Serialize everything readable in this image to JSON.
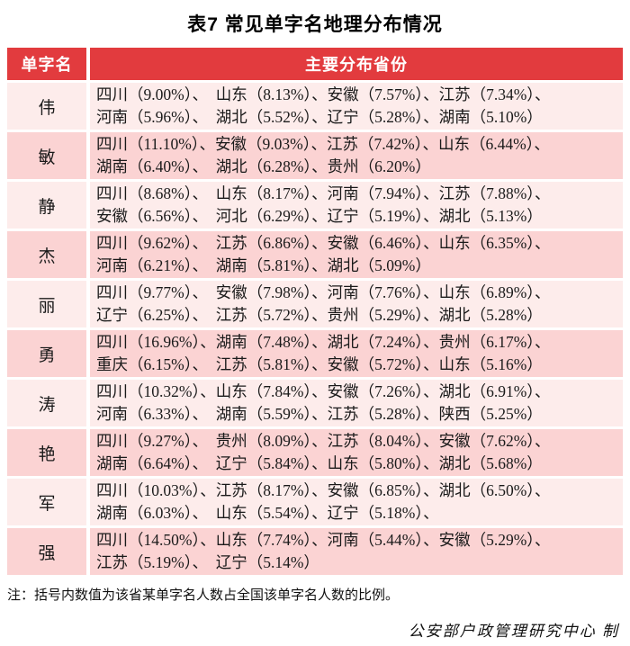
{
  "title": "表7 常见单字名地理分布情况",
  "table": {
    "header": {
      "name_col": "单字名",
      "provinces_col": "主要分布省份"
    },
    "rows": [
      {
        "name": "伟",
        "line1": "四川（9.00%）、　山东（8.13%）、安徽（7.57%）、江苏（7.34%）、",
        "line2": "河南（5.96%）、　湖北（5.52%）、辽宁（5.28%）、湖南（5.10%）"
      },
      {
        "name": "敏",
        "line1": "四川（11.10%）、安徽（9.03%）、江苏（7.42%）、山东（6.44%）、",
        "line2": "湖南（6.40%）、　湖北（6.28%）、贵州（6.20%）"
      },
      {
        "name": "静",
        "line1": "四川（8.68%）、　山东（8.17%）、河南（7.94%）、江苏（7.88%）、",
        "line2": "安徽（6.56%）、　河北（6.29%）、辽宁（5.19%）、湖北（5.13%）"
      },
      {
        "name": "杰",
        "line1": "四川（9.62%）、　江苏（6.86%）、安徽（6.46%）、山东（6.35%）、",
        "line2": "河南（6.21%）、　湖南（5.81%）、湖北（5.09%）"
      },
      {
        "name": "丽",
        "line1": "四川（9.77%）、　安徽（7.98%）、河南（7.76%）、山东（6.89%）、",
        "line2": "辽宁（6.25%）、　江苏（5.72%）、贵州（5.29%）、湖北（5.28%）"
      },
      {
        "name": "勇",
        "line1": "四川（16.96%）、湖南（7.48%）、湖北（7.24%）、贵州（6.17%）、",
        "line2": "重庆（6.15%）、　江苏（5.81%）、安徽（5.72%）、山东（5.16%）"
      },
      {
        "name": "涛",
        "line1": "四川（10.32%）、山东（7.84%）、安徽（7.26%）、湖北（6.91%）、",
        "line2": "河南（6.33%）、　湖南（5.59%）、江苏（5.28%）、陕西（5.25%）"
      },
      {
        "name": "艳",
        "line1": "四川（9.27%）、　贵州（8.09%）、江苏（8.04%）、安徽（7.62%）、",
        "line2": "湖南（6.64%）、　辽宁（5.84%）、山东（5.80%）、湖北（5.68%）"
      },
      {
        "name": "军",
        "line1": "四川（10.03%）、江苏（8.17%）、安徽（6.85%）、湖北（6.50%）、",
        "line2": "湖南（6.03%）、　山东（5.54%）、辽宁（5.18%）、"
      },
      {
        "name": "强",
        "line1": "四川（14.50%）、山东（7.74%）、河南（5.44%）、安徽（5.29%）、",
        "line2": "江苏（5.19%）、　辽宁（5.14%）"
      }
    ]
  },
  "note": "注：括号内数值为该省某单字名人数占全国该单字名人数的比例。",
  "credit": "公安部户政管理研究中心 制",
  "colors": {
    "header_bg": "#e23b3e",
    "header_text": "#ffffff",
    "row_light": "#fdeceb",
    "row_dark": "#fbd3d3",
    "page_bg": "#ffffff",
    "text": "#1a1a1a"
  },
  "chart_data": {
    "type": "table",
    "title": "表7 常见单字名地理分布情况",
    "columns": [
      "单字名",
      "主要分布省份"
    ],
    "rows": [
      {
        "name": "伟",
        "provinces": [
          {
            "province": "四川",
            "pct": 9.0
          },
          {
            "province": "山东",
            "pct": 8.13
          },
          {
            "province": "安徽",
            "pct": 7.57
          },
          {
            "province": "江苏",
            "pct": 7.34
          },
          {
            "province": "河南",
            "pct": 5.96
          },
          {
            "province": "湖北",
            "pct": 5.52
          },
          {
            "province": "辽宁",
            "pct": 5.28
          },
          {
            "province": "湖南",
            "pct": 5.1
          }
        ]
      },
      {
        "name": "敏",
        "provinces": [
          {
            "province": "四川",
            "pct": 11.1
          },
          {
            "province": "安徽",
            "pct": 9.03
          },
          {
            "province": "江苏",
            "pct": 7.42
          },
          {
            "province": "山东",
            "pct": 6.44
          },
          {
            "province": "湖南",
            "pct": 6.4
          },
          {
            "province": "湖北",
            "pct": 6.28
          },
          {
            "province": "贵州",
            "pct": 6.2
          }
        ]
      },
      {
        "name": "静",
        "provinces": [
          {
            "province": "四川",
            "pct": 8.68
          },
          {
            "province": "山东",
            "pct": 8.17
          },
          {
            "province": "河南",
            "pct": 7.94
          },
          {
            "province": "江苏",
            "pct": 7.88
          },
          {
            "province": "安徽",
            "pct": 6.56
          },
          {
            "province": "河北",
            "pct": 6.29
          },
          {
            "province": "辽宁",
            "pct": 5.19
          },
          {
            "province": "湖北",
            "pct": 5.13
          }
        ]
      },
      {
        "name": "杰",
        "provinces": [
          {
            "province": "四川",
            "pct": 9.62
          },
          {
            "province": "江苏",
            "pct": 6.86
          },
          {
            "province": "安徽",
            "pct": 6.46
          },
          {
            "province": "山东",
            "pct": 6.35
          },
          {
            "province": "河南",
            "pct": 6.21
          },
          {
            "province": "湖南",
            "pct": 5.81
          },
          {
            "province": "湖北",
            "pct": 5.09
          }
        ]
      },
      {
        "name": "丽",
        "provinces": [
          {
            "province": "四川",
            "pct": 9.77
          },
          {
            "province": "安徽",
            "pct": 7.98
          },
          {
            "province": "河南",
            "pct": 7.76
          },
          {
            "province": "山东",
            "pct": 6.89
          },
          {
            "province": "辽宁",
            "pct": 6.25
          },
          {
            "province": "江苏",
            "pct": 5.72
          },
          {
            "province": "贵州",
            "pct": 5.29
          },
          {
            "province": "湖北",
            "pct": 5.28
          }
        ]
      },
      {
        "name": "勇",
        "provinces": [
          {
            "province": "四川",
            "pct": 16.96
          },
          {
            "province": "湖南",
            "pct": 7.48
          },
          {
            "province": "湖北",
            "pct": 7.24
          },
          {
            "province": "贵州",
            "pct": 6.17
          },
          {
            "province": "重庆",
            "pct": 6.15
          },
          {
            "province": "江苏",
            "pct": 5.81
          },
          {
            "province": "安徽",
            "pct": 5.72
          },
          {
            "province": "山东",
            "pct": 5.16
          }
        ]
      },
      {
        "name": "涛",
        "provinces": [
          {
            "province": "四川",
            "pct": 10.32
          },
          {
            "province": "山东",
            "pct": 7.84
          },
          {
            "province": "安徽",
            "pct": 7.26
          },
          {
            "province": "湖北",
            "pct": 6.91
          },
          {
            "province": "河南",
            "pct": 6.33
          },
          {
            "province": "湖南",
            "pct": 5.59
          },
          {
            "province": "江苏",
            "pct": 5.28
          },
          {
            "province": "陕西",
            "pct": 5.25
          }
        ]
      },
      {
        "name": "艳",
        "provinces": [
          {
            "province": "四川",
            "pct": 9.27
          },
          {
            "province": "贵州",
            "pct": 8.09
          },
          {
            "province": "江苏",
            "pct": 8.04
          },
          {
            "province": "安徽",
            "pct": 7.62
          },
          {
            "province": "湖南",
            "pct": 6.64
          },
          {
            "province": "辽宁",
            "pct": 5.84
          },
          {
            "province": "山东",
            "pct": 5.8
          },
          {
            "province": "湖北",
            "pct": 5.68
          }
        ]
      },
      {
        "name": "军",
        "provinces": [
          {
            "province": "四川",
            "pct": 10.03
          },
          {
            "province": "江苏",
            "pct": 8.17
          },
          {
            "province": "安徽",
            "pct": 6.85
          },
          {
            "province": "湖北",
            "pct": 6.5
          },
          {
            "province": "湖南",
            "pct": 6.03
          },
          {
            "province": "山东",
            "pct": 5.54
          },
          {
            "province": "辽宁",
            "pct": 5.18
          }
        ]
      },
      {
        "name": "强",
        "provinces": [
          {
            "province": "四川",
            "pct": 14.5
          },
          {
            "province": "山东",
            "pct": 7.74
          },
          {
            "province": "河南",
            "pct": 5.44
          },
          {
            "province": "安徽",
            "pct": 5.29
          },
          {
            "province": "江苏",
            "pct": 5.19
          },
          {
            "province": "辽宁",
            "pct": 5.14
          }
        ]
      }
    ]
  }
}
